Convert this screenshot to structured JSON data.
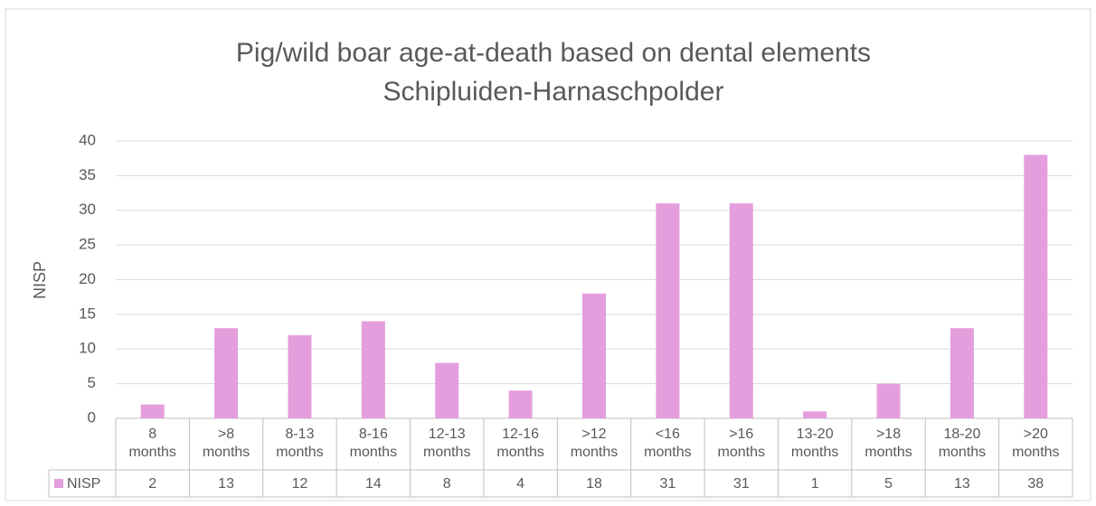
{
  "chart_data": {
    "type": "bar",
    "title": "Pig/wild boar age-at-death based on dental elements",
    "subtitle": "Schipluiden-Harnaschpolder",
    "y_label": "NISP",
    "categories": [
      "8 months",
      ">8 months",
      "8-13 months",
      "8-16 months",
      "12-13 months",
      "12-16 months",
      ">12 months",
      "<16 months",
      ">16 months",
      "13-20 months",
      ">18 months",
      "18-20 months",
      ">20 months"
    ],
    "series": [
      {
        "name": "NISP",
        "color": "#e59edd",
        "values": [
          2,
          13,
          12,
          14,
          8,
          4,
          18,
          31,
          31,
          1,
          5,
          13,
          38
        ]
      }
    ],
    "ylim": [
      0,
      40
    ],
    "yticks": [
      0,
      5,
      10,
      15,
      20,
      25,
      30,
      35,
      40
    ],
    "grid": true,
    "data_table": true
  }
}
